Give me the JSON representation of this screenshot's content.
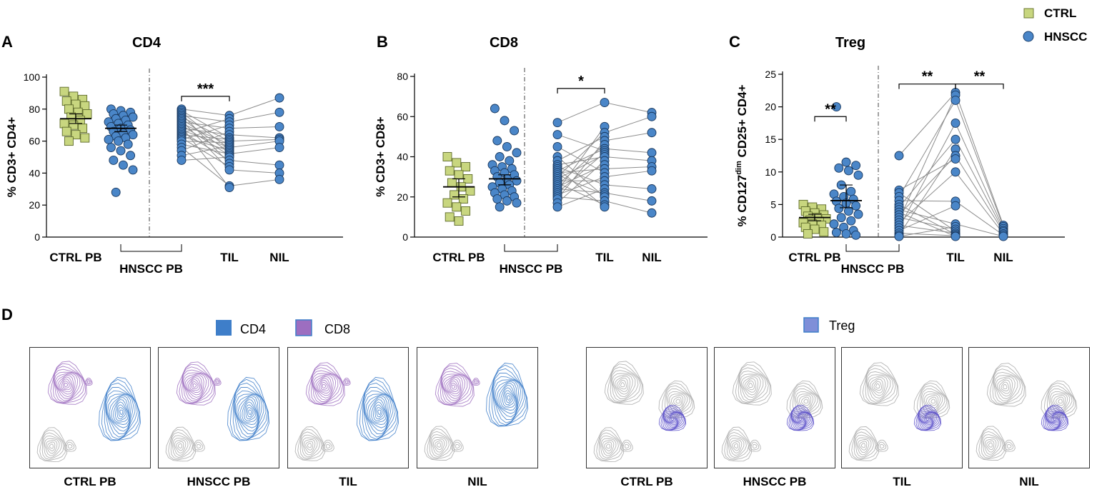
{
  "colors": {
    "ctrl": "#c8d67f",
    "hnscc": "#4a86c8",
    "cd4": "#3e7ec9",
    "cd8": "#9d6ec0",
    "treg": "#7f8fd8"
  },
  "legend_top": {
    "ctrl_label": "CTRL",
    "hnscc_label": "HNSCC"
  },
  "chart_data": [
    {
      "id": "A",
      "type": "scatter",
      "panel_letter": "A",
      "title": "CD4",
      "ylabel": "% CD3+ CD4+",
      "ylim": [
        0,
        100
      ],
      "yticks": [
        0,
        20,
        40,
        60,
        80,
        100
      ],
      "xlabels": {
        "ctrl": "CTRL PB",
        "hnscc": "HNSCC PB",
        "til": "TIL",
        "nil": "NIL"
      },
      "ctrl_pb": [
        91,
        88,
        86,
        85,
        83,
        82,
        80,
        78,
        77,
        75,
        73,
        71,
        70,
        68,
        66,
        64,
        62,
        60
      ],
      "ctrl_mean": 74,
      "ctrl_sem": [
        71,
        77
      ],
      "hnscc_pb": [
        80,
        79,
        78,
        77,
        76,
        75,
        74,
        73,
        72,
        71,
        70,
        69,
        68,
        67,
        66,
        65,
        64,
        63,
        62,
        61,
        60,
        58,
        56,
        54,
        51,
        48,
        45,
        42,
        28
      ],
      "hnscc_mean": 68,
      "hnscc_sem": [
        66,
        70
      ],
      "paired_left": [
        80,
        79,
        78,
        77,
        76,
        75,
        74,
        73,
        72,
        71,
        70,
        69,
        68,
        67,
        66,
        65,
        64,
        63,
        62,
        61,
        60,
        58,
        56,
        54,
        51,
        48
      ],
      "til": [
        76,
        74,
        72,
        70,
        68,
        66,
        64,
        62,
        61,
        60,
        59,
        58,
        57,
        56,
        55,
        54,
        53,
        52,
        51,
        50,
        48,
        46,
        44,
        42,
        32,
        31
      ],
      "nil": [
        87,
        78,
        69,
        62,
        61,
        60,
        56,
        45,
        40,
        36
      ],
      "til_nil_pairs": [
        [
          76,
          87
        ],
        [
          72,
          78
        ],
        [
          68,
          69
        ],
        [
          64,
          62
        ],
        [
          60,
          61
        ],
        [
          56,
          60
        ],
        [
          52,
          56
        ],
        [
          48,
          45
        ],
        [
          42,
          40
        ],
        [
          32,
          36
        ]
      ],
      "sig": [
        {
          "label": "***",
          "from": "hnscc_pb",
          "to": "til",
          "y": 88
        }
      ]
    },
    {
      "id": "B",
      "type": "scatter",
      "panel_letter": "B",
      "title": "CD8",
      "ylabel": "% CD3+ CD8+",
      "ylim": [
        0,
        80
      ],
      "yticks": [
        0,
        20,
        40,
        60,
        80
      ],
      "xlabels": {
        "ctrl": "CTRL PB",
        "hnscc": "HNSCC PB",
        "til": "TIL",
        "nil": "NIL"
      },
      "ctrl_pb": [
        40,
        37,
        35,
        33,
        31,
        29,
        27,
        25,
        23,
        21,
        19,
        17,
        15,
        13,
        10,
        8
      ],
      "ctrl_mean": 25,
      "ctrl_sem": [
        20,
        29
      ],
      "hnscc_pb": [
        64,
        58,
        53,
        48,
        45,
        42,
        40,
        38,
        36,
        35,
        34,
        33,
        32,
        31,
        30,
        29,
        28,
        27,
        26,
        25,
        24,
        23,
        22,
        21,
        20,
        19,
        18,
        17,
        15
      ],
      "hnscc_mean": 29,
      "hnscc_sem": [
        26,
        31
      ],
      "paired_left": [
        57,
        51,
        45,
        40,
        38,
        36,
        35,
        34,
        33,
        32,
        31,
        30,
        29,
        28,
        27,
        26,
        25,
        24,
        23,
        22,
        21,
        20,
        19,
        17,
        15
      ],
      "til": [
        67,
        55,
        52,
        50,
        48,
        46,
        44,
        43,
        42,
        41,
        40,
        38,
        36,
        34,
        32,
        30,
        28,
        26,
        24,
        22,
        21,
        20,
        18,
        16,
        15
      ],
      "nil": [
        62,
        60,
        52,
        42,
        38,
        35,
        33,
        24,
        18,
        12
      ],
      "til_nil_pairs": [
        [
          67,
          62
        ],
        [
          52,
          60
        ],
        [
          48,
          52
        ],
        [
          44,
          42
        ],
        [
          40,
          38
        ],
        [
          34,
          35
        ],
        [
          30,
          33
        ],
        [
          26,
          24
        ],
        [
          22,
          18
        ],
        [
          18,
          12
        ]
      ],
      "sig": [
        {
          "label": "*",
          "from": "hnscc_pb",
          "to": "til",
          "y": 74
        }
      ]
    },
    {
      "id": "C",
      "type": "scatter",
      "panel_letter": "C",
      "title": "Treg",
      "ylabel_pre": "% CD127",
      "ylabel_sup": "dim",
      "ylabel_post": " CD25+ CD4+",
      "ylim": [
        0,
        25
      ],
      "yticks": [
        0,
        5,
        10,
        15,
        20,
        25
      ],
      "xlabels": {
        "ctrl": "CTRL PB",
        "hnscc": "HNSCC PB",
        "til": "TIL",
        "nil": "NIL"
      },
      "ctrl_pb": [
        5.0,
        4.6,
        4.3,
        4.0,
        3.7,
        3.4,
        3.2,
        3.0,
        2.8,
        2.6,
        2.4,
        2.2,
        2.0,
        1.8,
        1.5,
        1.2,
        0.8,
        0.5
      ],
      "ctrl_mean": 3.0,
      "ctrl_sem": [
        2.5,
        3.5
      ],
      "hnscc_pb": [
        20.0,
        11.5,
        11.0,
        10.6,
        10.2,
        9.5,
        8.0,
        7.0,
        6.6,
        6.2,
        5.8,
        5.5,
        5.2,
        4.8,
        4.4,
        4.0,
        3.5,
        3.0,
        2.5,
        2.0,
        1.5,
        1.0,
        0.7,
        0.5,
        0.3
      ],
      "hnscc_mean": 5.6,
      "hnscc_sem": [
        4.5,
        8.0
      ],
      "paired_left": [
        12.5,
        7.2,
        6.8,
        6.2,
        5.6,
        5.0,
        4.6,
        4.2,
        3.8,
        3.4,
        3.0,
        2.6,
        2.2,
        1.8,
        1.4,
        1.0,
        0.6,
        0.3,
        0.1
      ],
      "til": [
        22.2,
        21.8,
        21.0,
        17.5,
        15.0,
        13.5,
        12.5,
        12.0,
        10.0,
        5.5,
        4.8,
        2.0,
        1.6,
        1.2,
        0.9,
        0.6,
        0.4,
        0.2,
        0.1
      ],
      "nil": [
        1.8,
        1.6,
        1.3,
        1.0,
        0.8,
        0.5,
        0.3,
        0.1
      ],
      "til_nil_pairs": [
        [
          22.2,
          1.8
        ],
        [
          21.0,
          1.6
        ],
        [
          17.5,
          1.3
        ],
        [
          15.0,
          1.0
        ],
        [
          12.5,
          0.8
        ],
        [
          10.0,
          0.5
        ],
        [
          5.5,
          0.3
        ],
        [
          2.0,
          0.1
        ]
      ],
      "sig": [
        {
          "label": "**",
          "from": "ctrl_pb",
          "to": "hnscc_pb",
          "y": 18.5
        },
        {
          "label": "**",
          "from": "hnscc_pb",
          "to": "til",
          "y": 23.5
        },
        {
          "label": "**",
          "from": "til",
          "to": "nil",
          "y": 23.5
        }
      ]
    }
  ],
  "panel_d": {
    "letter": "D",
    "legend_left": {
      "cd4_label": "CD4",
      "cd8_label": "CD8"
    },
    "legend_right": {
      "treg_label": "Treg"
    },
    "left_plots": [
      {
        "label": "CTRL PB"
      },
      {
        "label": "HNSCC PB"
      },
      {
        "label": "TIL"
      },
      {
        "label": "NIL"
      }
    ],
    "right_plots": [
      {
        "label": "CTRL PB"
      },
      {
        "label": "HNSCC PB"
      },
      {
        "label": "TIL"
      },
      {
        "label": "NIL"
      }
    ]
  }
}
